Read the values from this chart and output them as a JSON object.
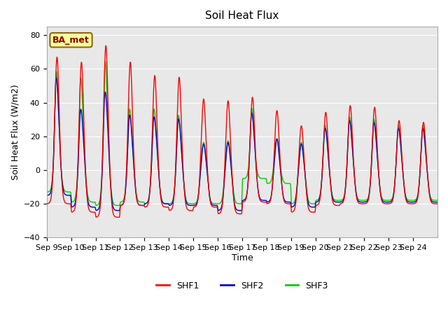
{
  "title": "Soil Heat Flux",
  "ylabel": "Soil Heat Flux (W/m2)",
  "xlabel": "Time",
  "annotation": "BA_met",
  "ylim": [
    -40,
    85
  ],
  "yticks": [
    -40,
    -20,
    0,
    20,
    40,
    60,
    80
  ],
  "xtick_labels": [
    "Sep 9",
    "Sep 10",
    "Sep 11",
    "Sep 12",
    "Sep 13",
    "Sep 14",
    "Sep 15",
    "Sep 16",
    "Sep 17",
    "Sep 18",
    "Sep 19",
    "Sep 20",
    "Sep 21",
    "Sep 22",
    "Sep 23",
    "Sep 24"
  ],
  "shf1_color": "#FF0000",
  "shf2_color": "#0000CC",
  "shf3_color": "#00CC00",
  "background_color": "#E8E8E8",
  "legend_labels": [
    "SHF1",
    "SHF2",
    "SHF3"
  ],
  "line_width": 1.0,
  "peaks_shf1": [
    68,
    65,
    75,
    65,
    57,
    56,
    43,
    42,
    44,
    36,
    27,
    35,
    39,
    38,
    30,
    29
  ],
  "peaks_shf2": [
    48,
    32,
    41,
    29,
    28,
    27,
    16,
    17,
    30,
    19,
    16,
    22,
    26,
    25,
    22,
    22
  ],
  "peaks_shf3": [
    48,
    45,
    53,
    30,
    30,
    27,
    17,
    18,
    30,
    19,
    17,
    22,
    26,
    25,
    22,
    22
  ],
  "night_shf1": [
    -20,
    -25,
    -28,
    -21,
    -22,
    -24,
    -22,
    -26,
    -19,
    -20,
    -25,
    -21,
    -20,
    -20,
    -20,
    -20
  ],
  "night_shf2": [
    -15,
    -22,
    -24,
    -21,
    -20,
    -21,
    -21,
    -24,
    -18,
    -19,
    -22,
    -19,
    -19,
    -19,
    -19,
    -19
  ],
  "night_shf3": [
    -13,
    -19,
    -21,
    -19,
    -20,
    -20,
    -20,
    -20,
    -5,
    -8,
    -20,
    -18,
    -18,
    -18,
    -18,
    -18
  ]
}
